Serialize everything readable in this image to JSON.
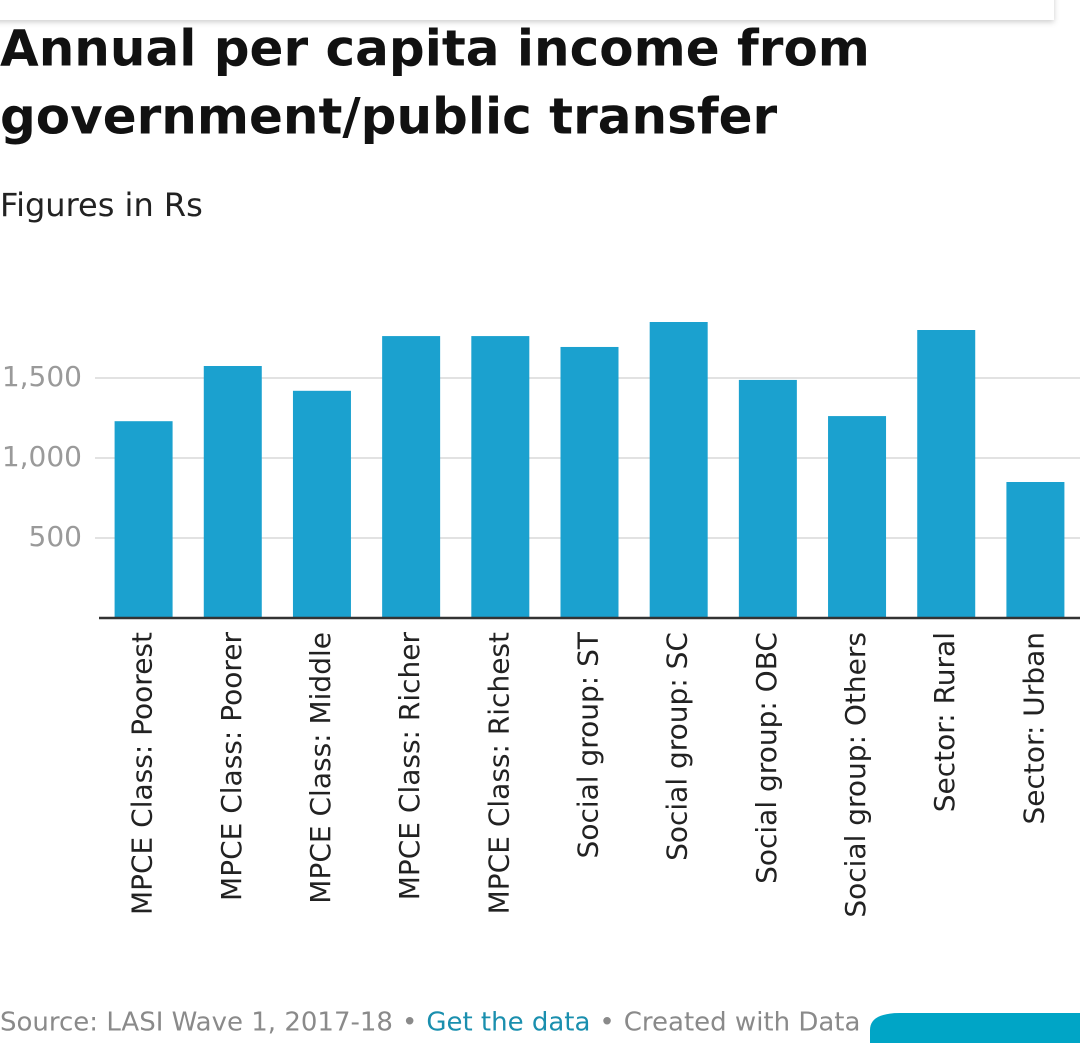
{
  "chart_data": {
    "type": "bar",
    "title": [
      "Annual per capita income from",
      "government/public transfer"
    ],
    "subtitle": "Figures in Rs",
    "categories": [
      "MPCE Class: Poorest",
      "MPCE Class: Poorer",
      "MPCE Class: Middle",
      "MPCE Class: Richer",
      "MPCE Class: Richest",
      "Social group: ST",
      "Social group: SC",
      "Social group: OBC",
      "Social group: Others",
      "Sector: Rural",
      "Sector: Urban"
    ],
    "values": [
      1230,
      1575,
      1420,
      1762,
      1762,
      1694,
      1850,
      1488,
      1262,
      1800,
      850
    ],
    "color": "#1ba1cf",
    "ylim": [
      0,
      1900
    ],
    "yticks": [
      500,
      {
        "value": 1000,
        "label": "1,000"
      },
      {
        "value": 1500,
        "label": "1,500"
      }
    ],
    "grid": true,
    "footer": [
      "Source: LASI Wave 1, 2017-18",
      "•",
      "Get the data",
      "•",
      "Created with Data"
    ]
  }
}
